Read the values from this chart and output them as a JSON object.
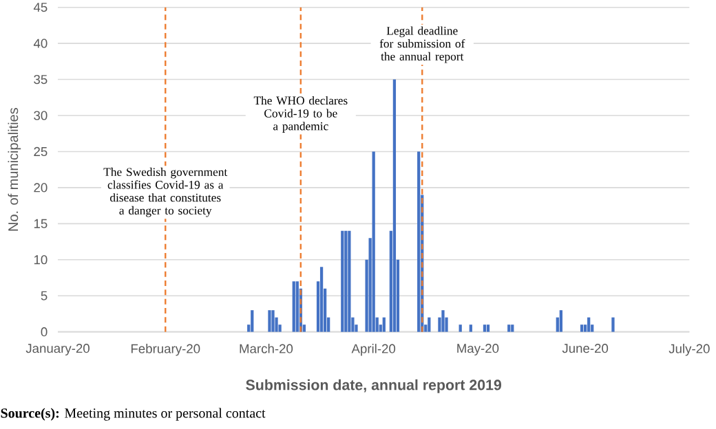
{
  "chart_data": {
    "type": "bar",
    "xlabel": "Submission date, annual report 2019",
    "ylabel": "No. of municipalities",
    "color": "#4472c4",
    "x": [
      "2020-02-25",
      "2020-02-26",
      "2020-03-02",
      "2020-03-03",
      "2020-03-04",
      "2020-03-05",
      "2020-03-09",
      "2020-03-10",
      "2020-03-11",
      "2020-03-12",
      "2020-03-16",
      "2020-03-17",
      "2020-03-18",
      "2020-03-19",
      "2020-03-23",
      "2020-03-24",
      "2020-03-25",
      "2020-03-26",
      "2020-03-27",
      "2020-03-30",
      "2020-03-31",
      "2020-04-01",
      "2020-04-02",
      "2020-04-03",
      "2020-04-04",
      "2020-04-06",
      "2020-04-07",
      "2020-04-08",
      "2020-04-14",
      "2020-04-15",
      "2020-04-16",
      "2020-04-17",
      "2020-04-20",
      "2020-04-21",
      "2020-04-22",
      "2020-04-26",
      "2020-04-29",
      "2020-05-03",
      "2020-05-04",
      "2020-05-10",
      "2020-05-11",
      "2020-05-24",
      "2020-05-25",
      "2020-05-31",
      "2020-06-01",
      "2020-06-02",
      "2020-06-03",
      "2020-06-09"
    ],
    "values": [
      1,
      3,
      3,
      3,
      2,
      1,
      7,
      7,
      6,
      1,
      7,
      9,
      6,
      2,
      14,
      14,
      14,
      2,
      1,
      10,
      13,
      25,
      2,
      1,
      2,
      14,
      35,
      10,
      25,
      19,
      1,
      2,
      2,
      3,
      2,
      1,
      1,
      1,
      1,
      1,
      1,
      2,
      3,
      1,
      1,
      2,
      1,
      2
    ],
    "xlim": [
      "2020-01-01",
      "2020-07-01"
    ],
    "xticks": [
      {
        "value": "2020-01-01",
        "label": "January-20"
      },
      {
        "value": "2020-02-01",
        "label": "February-20"
      },
      {
        "value": "2020-03-01",
        "label": "March-20"
      },
      {
        "value": "2020-04-01",
        "label": "April-20"
      },
      {
        "value": "2020-05-01",
        "label": "May-20"
      },
      {
        "value": "2020-06-01",
        "label": "June-20"
      },
      {
        "value": "2020-07-01",
        "label": "July-20"
      }
    ],
    "ylim": [
      0,
      45
    ],
    "yticks": [
      0,
      5,
      10,
      15,
      20,
      25,
      30,
      35,
      40,
      45
    ],
    "grid": "y",
    "ref_lines": [
      {
        "axis": "x",
        "value": "2020-02-01",
        "label": "The Swedish government classifies Covid-19 as a disease that constitutes a danger to society",
        "color": "#ed7d31",
        "line_style": "dashed"
      },
      {
        "axis": "x",
        "value": "2020-03-11",
        "label": "The WHO declares Covid-19 to be a pandemic",
        "color": "#ed7d31",
        "line_style": "dashed"
      },
      {
        "axis": "x",
        "value": "2020-04-15",
        "label": "Legal deadline for submission of the annual report",
        "color": "#ed7d31",
        "line_style": "dashed"
      }
    ],
    "annotations": [
      "**Source(s):** Meeting minutes or personal contact"
    ]
  }
}
